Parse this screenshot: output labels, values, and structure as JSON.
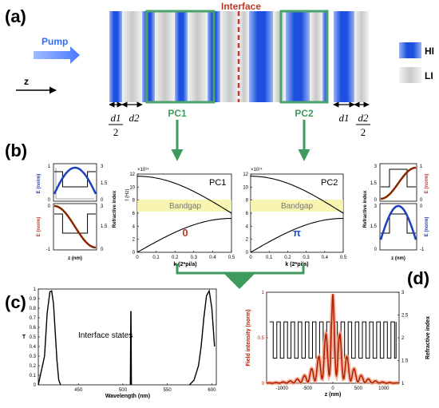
{
  "panel_labels": {
    "a": "(a)",
    "b": "(b)",
    "c": "(c)",
    "d": "(d)"
  },
  "panel_a": {
    "interface_label": "Interface",
    "pump_label": "Pump",
    "z_label": "z",
    "pc1_label": "PC1",
    "pc2_label": "PC2",
    "d1_num": "d1",
    "d1_den": "2",
    "d2": "d2",
    "d1": "d1",
    "d2_num": "d2",
    "d2_den": "2",
    "legend": {
      "hi": "HI",
      "li": "LI"
    },
    "colors": {
      "hi": "#1f4fd8",
      "li": "#d9d9d9",
      "box": "#4aa36b",
      "interface": "#c0392b",
      "pump": "#2e6cff"
    }
  },
  "panel_b": {
    "band_pc1": {
      "label": "PC1",
      "ylabel": "f (Hz)",
      "exp": "×10¹⁴",
      "xlabel": "k (2*pi/a)",
      "yticks": [
        "0",
        "2",
        "4",
        "6",
        "8",
        "10",
        "12"
      ],
      "xticks": [
        "0",
        "0.1",
        "0.2",
        "0.3",
        "0.4",
        "0.5"
      ],
      "bandgap": "Bandgap",
      "phase": "0"
    },
    "band_pc2": {
      "label": "PC2",
      "exp": "×10¹⁴",
      "xlabel": "k (2*pi/a)",
      "yticks": [
        "0",
        "2",
        "4",
        "6",
        "8",
        "10",
        "12"
      ],
      "xticks": [
        "0",
        "0.1",
        "0.2",
        "0.3",
        "0.4",
        "0.5"
      ],
      "bandgap": "Bandgap",
      "phase": "π"
    },
    "mini": {
      "e_norm": "E (norm)",
      "refr": "Refractive index",
      "z_nm": "z (nm)",
      "left_y": [
        "1",
        "0",
        "-1"
      ],
      "right_y": [
        "3",
        "1.5",
        "0"
      ],
      "top_y": [
        "1",
        "0"
      ],
      "bot_y": [
        "0",
        "-1"
      ]
    }
  },
  "panel_c": {
    "chart_data": {
      "type": "line",
      "xlabel": "Wavelength (nm)",
      "ylabel": "T",
      "xlim": [
        405,
        605
      ],
      "ylim": [
        0,
        1
      ],
      "xticks": [
        "450",
        "500",
        "550",
        "600"
      ],
      "yticks": [
        "0",
        "0.1",
        "0.2",
        "0.3",
        "0.4",
        "0.5",
        "0.6",
        "0.7",
        "0.8",
        "0.9",
        "1"
      ],
      "annotation": "Interface states",
      "series": [
        {
          "x": [
            405,
            412,
            415,
            418,
            420,
            422,
            424,
            426,
            428,
            430
          ],
          "y": [
            0.0,
            0.3,
            0.75,
            0.97,
            0.98,
            0.85,
            0.55,
            0.25,
            0.05,
            0.0
          ]
        },
        {
          "x": [
            508.5,
            509,
            509.5
          ],
          "y": [
            0.0,
            0.77,
            0.0
          ]
        },
        {
          "x": [
            575,
            580,
            585,
            588,
            591,
            594,
            597,
            600,
            603
          ],
          "y": [
            0.0,
            0.05,
            0.2,
            0.4,
            0.7,
            0.93,
            0.98,
            0.8,
            0.4
          ]
        }
      ]
    }
  },
  "panel_d": {
    "chart_data": {
      "type": "line",
      "xlabel": "z (nm)",
      "ylabel": "Field intensity (norm)",
      "y2label": "Refractive index",
      "xlim": [
        -1300,
        1300
      ],
      "ylim": [
        0,
        1
      ],
      "y2lim": [
        1,
        3
      ],
      "xticks": [
        "-1000",
        "-500",
        "0",
        "500",
        "1000"
      ],
      "yticks": [
        "0",
        "0.5",
        "1"
      ],
      "y2ticks": [
        "1",
        "1.5",
        "2",
        "2.5",
        "3"
      ],
      "refractive_index": {
        "high": 2.35,
        "low": 1.55,
        "period_nm": 140
      }
    }
  }
}
